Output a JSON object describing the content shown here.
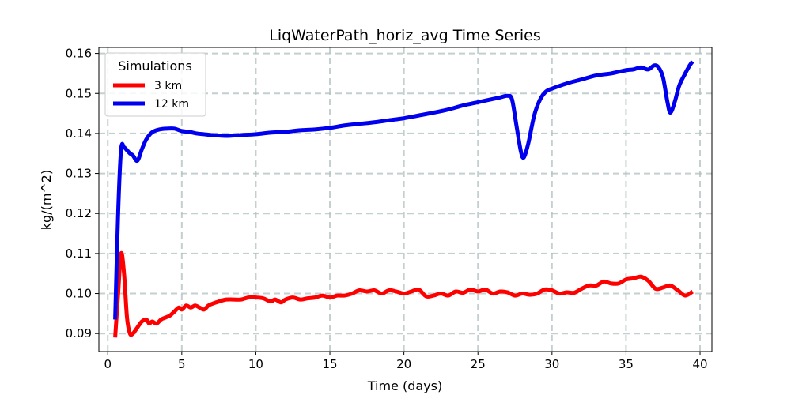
{
  "chart_data": {
    "type": "line",
    "title": "LiqWaterPath_horiz_avg Time Series",
    "xlabel": "Time (days)",
    "ylabel": "kg/(m^2)",
    "xlim": [
      -0.6,
      40.8
    ],
    "ylim": [
      0.0855,
      0.1615
    ],
    "xticks": [
      0,
      5,
      10,
      15,
      20,
      25,
      30,
      35,
      40
    ],
    "xtick_labels": [
      "0",
      "5",
      "10",
      "15",
      "20",
      "25",
      "30",
      "35",
      "40"
    ],
    "yticks": [
      0.09,
      0.1,
      0.11,
      0.12,
      0.13,
      0.14,
      0.15,
      0.16
    ],
    "ytick_labels": [
      "0.09",
      "0.10",
      "0.11",
      "0.12",
      "0.13",
      "0.14",
      "0.15",
      "0.16"
    ],
    "grid": true,
    "legend": {
      "title": "Simulations",
      "position": "top-left"
    },
    "series": [
      {
        "name": "3 km",
        "color": "#ff0000",
        "x": [
          0.5,
          0.7,
          0.9,
          1.1,
          1.3,
          1.5,
          1.7,
          2.0,
          2.3,
          2.6,
          2.8,
          3.0,
          3.3,
          3.6,
          3.9,
          4.2,
          4.5,
          4.8,
          5.0,
          5.3,
          5.6,
          5.9,
          6.2,
          6.5,
          6.8,
          7.1,
          7.5,
          8.0,
          8.5,
          9.0,
          9.5,
          10.0,
          10.5,
          11.0,
          11.3,
          11.7,
          12.0,
          12.5,
          13.0,
          13.5,
          14.0,
          14.5,
          15.0,
          15.5,
          16.0,
          16.5,
          17.0,
          17.5,
          18.0,
          18.5,
          19.0,
          19.5,
          20.0,
          20.5,
          21.0,
          21.5,
          22.0,
          22.5,
          23.0,
          23.5,
          24.0,
          24.5,
          25.0,
          25.5,
          26.0,
          26.5,
          27.0,
          27.5,
          28.0,
          28.5,
          29.0,
          29.5,
          30.0,
          30.5,
          31.0,
          31.5,
          32.0,
          32.5,
          33.0,
          33.5,
          34.0,
          34.5,
          35.0,
          35.5,
          36.0,
          36.5,
          37.0,
          37.5,
          38.0,
          38.5,
          39.0,
          39.5
        ],
        "y": [
          0.089,
          0.1,
          0.11,
          0.105,
          0.094,
          0.09,
          0.09,
          0.0915,
          0.093,
          0.0935,
          0.0925,
          0.093,
          0.0925,
          0.0935,
          0.094,
          0.0945,
          0.0955,
          0.0965,
          0.096,
          0.097,
          0.0965,
          0.097,
          0.0965,
          0.096,
          0.097,
          0.0975,
          0.098,
          0.0985,
          0.0985,
          0.0985,
          0.099,
          0.099,
          0.0988,
          0.098,
          0.0985,
          0.0978,
          0.0985,
          0.099,
          0.0985,
          0.0988,
          0.099,
          0.0995,
          0.099,
          0.0995,
          0.0995,
          0.1,
          0.1008,
          0.1005,
          0.1008,
          0.1,
          0.1008,
          0.1005,
          0.1,
          0.1005,
          0.101,
          0.0993,
          0.0995,
          0.1,
          0.0995,
          0.1005,
          0.1002,
          0.101,
          0.1005,
          0.101,
          0.1,
          0.1005,
          0.1003,
          0.0995,
          0.1,
          0.0997,
          0.1,
          0.101,
          0.1008,
          0.1,
          0.1003,
          0.1002,
          0.1012,
          0.102,
          0.102,
          0.103,
          0.1025,
          0.1025,
          0.1035,
          0.1038,
          0.1042,
          0.1032,
          0.1012,
          0.1015,
          0.102,
          0.1008,
          0.0995,
          0.1005
        ]
      },
      {
        "name": "12 km",
        "color": "#0000ee",
        "x": [
          0.5,
          0.7,
          0.9,
          1.1,
          1.3,
          1.5,
          1.7,
          2.0,
          2.3,
          2.6,
          3.0,
          3.5,
          4.0,
          4.5,
          5.0,
          5.5,
          6.0,
          6.5,
          7.0,
          7.5,
          8.0,
          9.0,
          10.0,
          11.0,
          12.0,
          13.0,
          14.0,
          15.0,
          16.0,
          17.0,
          18.0,
          19.0,
          20.0,
          21.0,
          22.0,
          23.0,
          24.0,
          25.0,
          26.0,
          26.5,
          27.0,
          27.3,
          27.6,
          27.9,
          28.1,
          28.4,
          28.8,
          29.2,
          29.6,
          30.0,
          31.0,
          32.0,
          33.0,
          34.0,
          35.0,
          35.5,
          36.0,
          36.5,
          36.9,
          37.2,
          37.5,
          37.8,
          38.0,
          38.3,
          38.6,
          39.0,
          39.3,
          39.5
        ],
        "y": [
          0.0935,
          0.12,
          0.136,
          0.1365,
          0.1358,
          0.135,
          0.1345,
          0.1332,
          0.136,
          0.1385,
          0.1403,
          0.141,
          0.1412,
          0.1412,
          0.1406,
          0.1404,
          0.14,
          0.1398,
          0.1396,
          0.1395,
          0.1394,
          0.1396,
          0.1398,
          0.1402,
          0.1404,
          0.1408,
          0.141,
          0.1414,
          0.142,
          0.1424,
          0.1428,
          0.1433,
          0.1438,
          0.1445,
          0.1452,
          0.146,
          0.147,
          0.1478,
          0.1486,
          0.149,
          0.1494,
          0.1485,
          0.142,
          0.1355,
          0.134,
          0.1375,
          0.1445,
          0.1485,
          0.1505,
          0.1512,
          0.1525,
          0.1535,
          0.1545,
          0.155,
          0.1558,
          0.156,
          0.1565,
          0.156,
          0.157,
          0.1565,
          0.154,
          0.1478,
          0.1452,
          0.148,
          0.152,
          0.155,
          0.157,
          0.158
        ]
      }
    ]
  }
}
